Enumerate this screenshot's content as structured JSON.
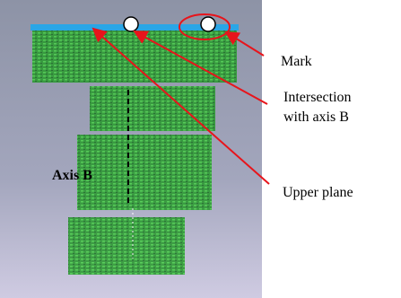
{
  "labels": {
    "mark": "Mark",
    "intersection": [
      "Intersection",
      "with axis B"
    ],
    "upper_plane": "Upper plane",
    "axis_b": "Axis B"
  }
}
